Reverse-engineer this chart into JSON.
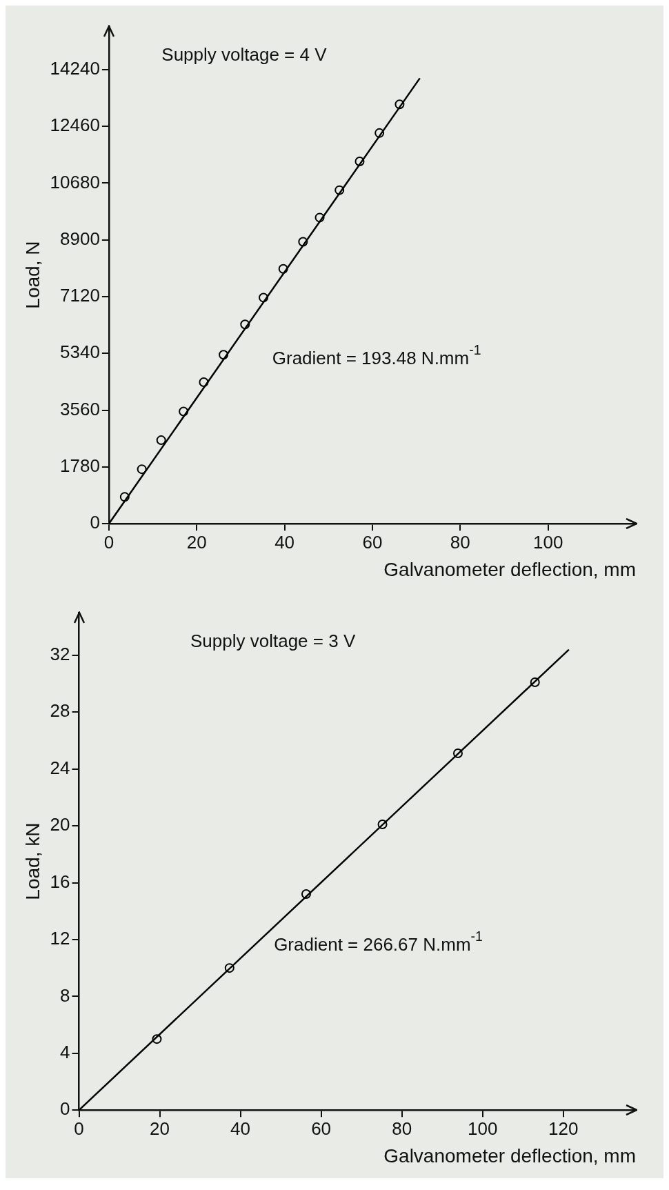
{
  "chart_data": [
    {
      "type": "scatter",
      "xlabel": "Galvanometer deflection, mm",
      "ylabel": "Load, N",
      "annotations": [
        "Supply voltage = 4 V",
        "Gradient = 193.48 N.mm$^{-1}$"
      ],
      "xlim": [
        0,
        120
      ],
      "xticks": [
        0,
        20,
        40,
        60,
        80,
        100
      ],
      "ylim": [
        0,
        15600
      ],
      "yticks": [
        0,
        1780,
        3560,
        5340,
        7120,
        8900,
        10680,
        12460,
        14240
      ],
      "grid": false,
      "legend": false,
      "series": [
        {
          "color": "#000000",
          "marker": "circle",
          "x": [
            3.6,
            7.5,
            11.9,
            17.0,
            21.6,
            26.1,
            31.0,
            35.2,
            39.7,
            44.2,
            48.0,
            52.5,
            57.1,
            61.6,
            66.2
          ],
          "values": [
            840,
            1710,
            2620,
            3520,
            4440,
            5300,
            6250,
            7090,
            7990,
            8840,
            9600,
            10460,
            11360,
            12250,
            13150
          ]
        },
        {
          "type": "line",
          "color": "#000000",
          "marker": "none",
          "x": [
            0,
            70.8
          ],
          "values": [
            0,
            13970
          ]
        }
      ]
    },
    {
      "type": "scatter",
      "xlabel": "Galvanometer deflection, mm",
      "ylabel": "Load, kN",
      "annotations": [
        "Supply voltage = 3 V",
        "Gradient = 266.67 N.mm$^{-1}$"
      ],
      "xlim": [
        0,
        138
      ],
      "xticks": [
        0,
        20,
        40,
        60,
        80,
        100,
        120
      ],
      "ylim": [
        0,
        35
      ],
      "yticks": [
        0,
        4,
        8,
        12,
        16,
        20,
        24,
        28,
        32
      ],
      "grid": false,
      "legend": false,
      "series": [
        {
          "color": "#000000",
          "marker": "circle",
          "x": [
            19.3,
            37.3,
            56.3,
            75.2,
            93.9,
            113.0
          ],
          "values": [
            5.0,
            10.0,
            15.2,
            20.1,
            25.1,
            30.1
          ]
        },
        {
          "type": "line",
          "color": "#000000",
          "marker": "none",
          "x": [
            0,
            121.4
          ],
          "values": [
            0,
            32.4
          ]
        }
      ]
    }
  ]
}
